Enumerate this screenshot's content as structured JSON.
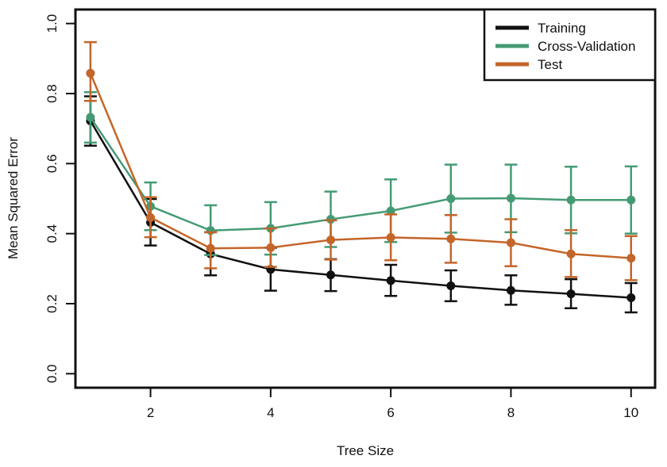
{
  "chart_data": {
    "type": "line",
    "title": "",
    "xlabel": "Tree Size",
    "ylabel": "Mean Squared Error",
    "x": [
      1,
      2,
      3,
      4,
      5,
      6,
      7,
      8,
      9,
      10
    ],
    "xticks": [
      2,
      4,
      6,
      8,
      10
    ],
    "xtick_labels": [
      "2",
      "4",
      "6",
      "8",
      "10"
    ],
    "xlim": [
      0.75,
      10.4
    ],
    "ylim": [
      -0.04,
      1.04
    ],
    "yticks": [
      0.0,
      0.2,
      0.4,
      0.6,
      0.8,
      1.0
    ],
    "ytick_labels": [
      "0.0",
      "0.2",
      "0.4",
      "0.6",
      "0.8",
      "1.0"
    ],
    "grid": false,
    "legend_position": "top-right",
    "series": [
      {
        "name": "Training",
        "color": "#111111",
        "values": [
          0.722,
          0.432,
          0.342,
          0.298,
          0.282,
          0.266,
          0.251,
          0.238,
          0.228,
          0.217
        ],
        "err_low": [
          0.651,
          0.366,
          0.281,
          0.237,
          0.236,
          0.222,
          0.207,
          0.197,
          0.187,
          0.175
        ],
        "err_high": [
          0.792,
          0.499,
          0.404,
          0.36,
          0.327,
          0.311,
          0.295,
          0.281,
          0.27,
          0.259
        ]
      },
      {
        "name": "Cross-Validation",
        "color": "#449b73",
        "values": [
          0.732,
          0.478,
          0.409,
          0.415,
          0.441,
          0.465,
          0.5,
          0.501,
          0.496,
          0.496
        ],
        "err_low": [
          0.66,
          0.41,
          0.339,
          0.34,
          0.362,
          0.376,
          0.403,
          0.404,
          0.401,
          0.4
        ],
        "err_high": [
          0.804,
          0.546,
          0.481,
          0.49,
          0.52,
          0.555,
          0.597,
          0.597,
          0.591,
          0.592
        ]
      },
      {
        "name": "Test",
        "color": "#c4652a",
        "values": [
          0.858,
          0.446,
          0.358,
          0.36,
          0.382,
          0.389,
          0.385,
          0.374,
          0.342,
          0.33
        ],
        "err_low": [
          0.779,
          0.39,
          0.301,
          0.305,
          0.326,
          0.324,
          0.317,
          0.307,
          0.276,
          0.267
        ],
        "err_high": [
          0.947,
          0.504,
          0.404,
          0.415,
          0.438,
          0.455,
          0.453,
          0.441,
          0.41,
          0.393
        ]
      }
    ]
  }
}
